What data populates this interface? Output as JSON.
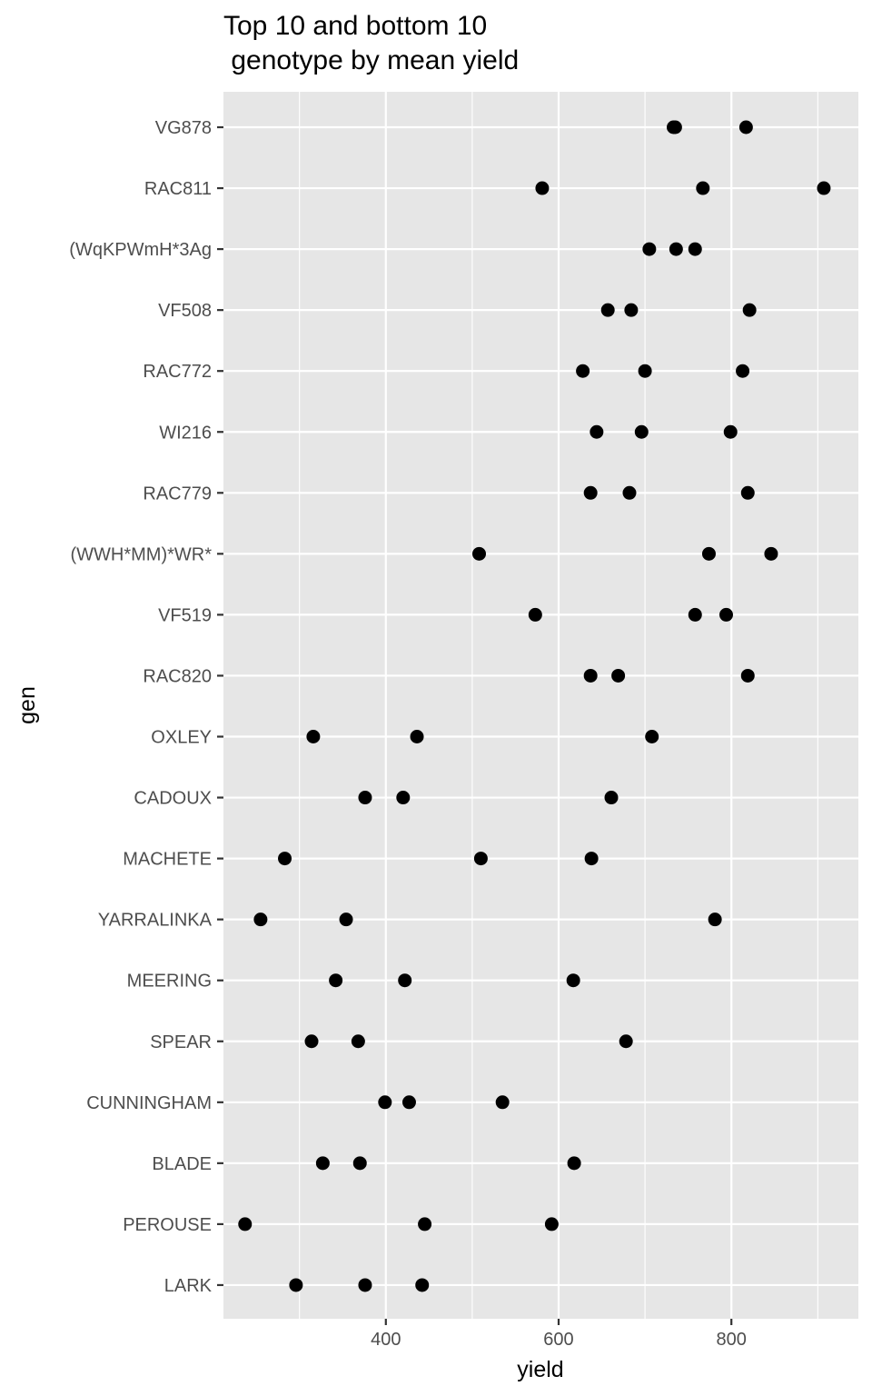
{
  "chart_data": {
    "type": "scatter",
    "title_lines": [
      "Top 10 and bottom 10",
      " genotype by mean yield"
    ],
    "xlabel": "yield",
    "ylabel": "gen",
    "xlim": [
      212,
      947
    ],
    "x_ticks": [
      400,
      600,
      800
    ],
    "grid": true,
    "legend": "none",
    "point_color": "#000000",
    "panel_color": "#e6e6e6",
    "gridline_color": "#ffffff",
    "categories": [
      "VG878",
      "RAC811",
      "(WqKPWmH*3Ag",
      "VF508",
      "RAC772",
      "WI216",
      "RAC779",
      "(WWH*MM)*WR*",
      "VF519",
      "RAC820",
      "OXLEY",
      "CADOUX",
      "MACHETE",
      "YARRALINKA",
      "MEERING",
      "SPEAR",
      "CUNNINGHAM",
      "BLADE",
      "PEROUSE",
      "LARK"
    ],
    "points": [
      {
        "gen": "VG878",
        "yields": [
          733,
          735,
          817
        ]
      },
      {
        "gen": "RAC811",
        "yields": [
          581,
          767,
          907
        ]
      },
      {
        "gen": "(WqKPWmH*3Ag",
        "yields": [
          705,
          736,
          758
        ]
      },
      {
        "gen": "VF508",
        "yields": [
          657,
          684,
          821
        ]
      },
      {
        "gen": "RAC772",
        "yields": [
          628,
          700,
          813
        ]
      },
      {
        "gen": "WI216",
        "yields": [
          644,
          696,
          799
        ]
      },
      {
        "gen": "RAC779",
        "yields": [
          637,
          682,
          819
        ]
      },
      {
        "gen": "(WWH*MM)*WR*",
        "yields": [
          508,
          774,
          846
        ]
      },
      {
        "gen": "VF519",
        "yields": [
          573,
          758,
          794
        ]
      },
      {
        "gen": "RAC820",
        "yields": [
          637,
          669,
          819
        ]
      },
      {
        "gen": "OXLEY",
        "yields": [
          316,
          436,
          708
        ]
      },
      {
        "gen": "CADOUX",
        "yields": [
          376,
          420,
          661
        ]
      },
      {
        "gen": "MACHETE",
        "yields": [
          283,
          510,
          638
        ]
      },
      {
        "gen": "YARRALINKA",
        "yields": [
          255,
          354,
          781
        ]
      },
      {
        "gen": "MEERING",
        "yields": [
          342,
          422,
          617
        ]
      },
      {
        "gen": "SPEAR",
        "yields": [
          314,
          368,
          678
        ]
      },
      {
        "gen": "CUNNINGHAM",
        "yields": [
          399,
          427,
          535
        ]
      },
      {
        "gen": "BLADE",
        "yields": [
          327,
          370,
          618
        ]
      },
      {
        "gen": "PEROUSE",
        "yields": [
          237,
          445,
          592
        ]
      },
      {
        "gen": "LARK",
        "yields": [
          296,
          376,
          442
        ]
      }
    ]
  }
}
